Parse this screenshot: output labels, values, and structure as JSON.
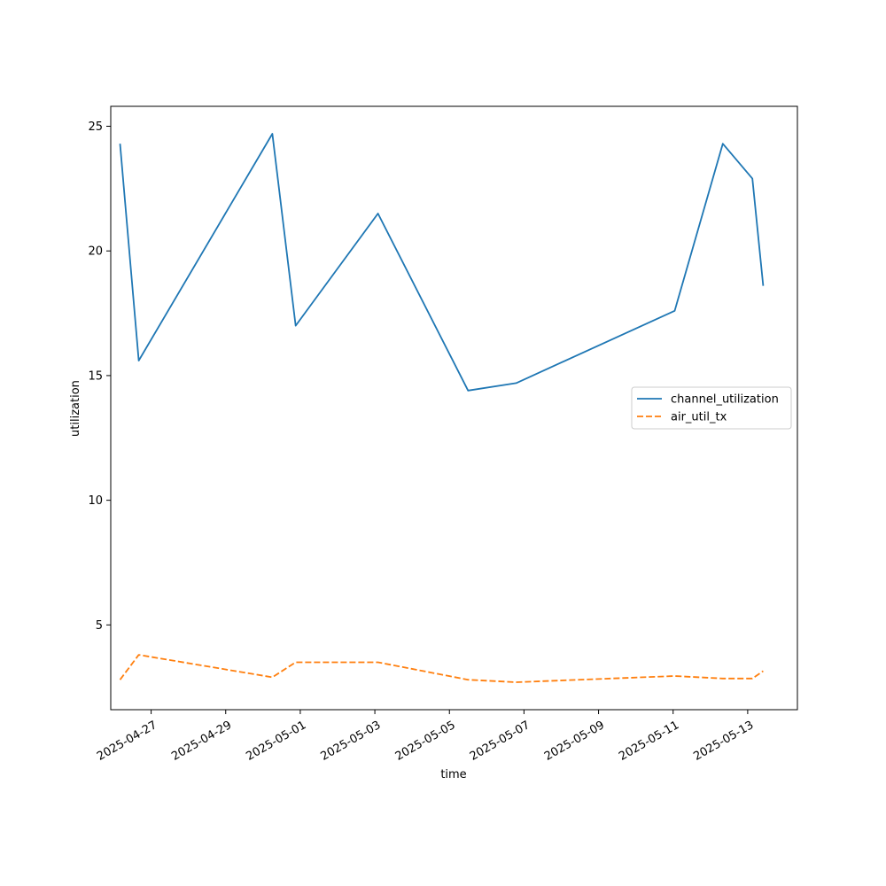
{
  "chart_data": {
    "type": "line",
    "title": "",
    "xlabel": "time",
    "ylabel": "utilization",
    "x_tick_labels": [
      "2025-04-27",
      "2025-04-29",
      "2025-05-01",
      "2025-05-03",
      "2025-05-05",
      "2025-05-07",
      "2025-05-09",
      "2025-05-11",
      "2025-05-13"
    ],
    "y_ticks": [
      5,
      10,
      15,
      20,
      25
    ],
    "ylim": [
      1.6,
      25.8
    ],
    "xlim": [
      "2025-04-25T22:00",
      "2025-05-14T08:00"
    ],
    "grid": false,
    "legend_position": "center-right",
    "x": [
      "2025-04-26T04:00",
      "2025-04-26T16:00",
      "2025-04-30T06:00",
      "2025-04-30T21:00",
      "2025-05-03T02:00",
      "2025-05-05T12:00",
      "2025-05-06T19:00",
      "2025-05-11T01:00",
      "2025-05-12T08:00",
      "2025-05-13T03:00",
      "2025-05-13T10:00"
    ],
    "series": [
      {
        "name": "channel_utilization",
        "color": "#1f77b4",
        "style": "solid",
        "values": [
          24.3,
          15.6,
          24.7,
          17.0,
          21.5,
          14.4,
          14.7,
          17.6,
          24.3,
          22.9,
          18.6
        ]
      },
      {
        "name": "air_util_tx",
        "color": "#ff7f0e",
        "style": "dashed",
        "values": [
          2.8,
          3.8,
          2.9,
          3.5,
          3.5,
          2.8,
          2.7,
          2.95,
          2.85,
          2.85,
          3.15
        ]
      }
    ]
  }
}
